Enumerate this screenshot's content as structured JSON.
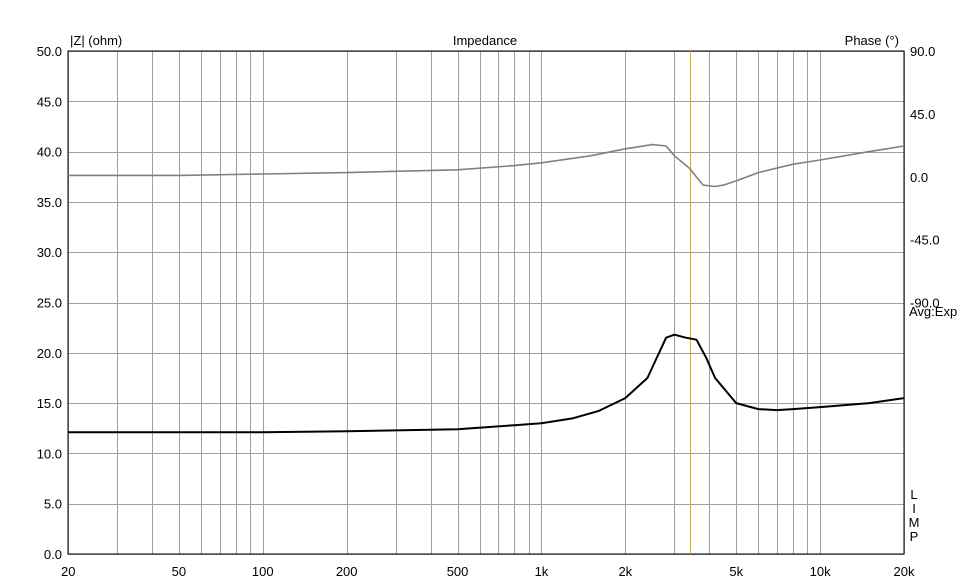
{
  "chart_data": {
    "type": "line",
    "title": "Impedance",
    "left_axis_label": "|Z| (ohm)",
    "right_axis_label": "Phase (°)",
    "side_note": "Avg:Exp",
    "watermark": "LIMP",
    "x_scale": "log",
    "xlim": [
      20,
      20000
    ],
    "ylim": [
      0,
      50
    ],
    "y2lim": [
      -270,
      90
    ],
    "grid": true,
    "x_ticks": [
      20,
      50,
      100,
      200,
      500,
      1000,
      2000,
      5000,
      10000,
      20000
    ],
    "x_tick_labels": [
      "20",
      "50",
      "100",
      "200",
      "500",
      "1k",
      "2k",
      "5k",
      "10k",
      "20k"
    ],
    "y_ticks": [
      0,
      5,
      10,
      15,
      20,
      25,
      30,
      35,
      40,
      45,
      50
    ],
    "y_tick_labels": [
      "0.0",
      "5.0",
      "10.0",
      "15.0",
      "20.0",
      "25.0",
      "30.0",
      "35.0",
      "40.0",
      "45.0",
      "50.0"
    ],
    "y2_ticks": [
      90,
      45,
      0,
      -45,
      -90
    ],
    "y2_tick_labels": [
      "90.0",
      "45.0",
      "0.0",
      "-45.0",
      "-90.0"
    ],
    "marker_frequency": 3400,
    "marker_color": "#d4b400",
    "series": [
      {
        "axis": "left",
        "color": "#000000",
        "x": [
          20,
          50,
          100,
          200,
          500,
          800,
          1000,
          1300,
          1600,
          2000,
          2400,
          2800,
          3000,
          3300,
          3600,
          3900,
          4200,
          4500,
          5000,
          6000,
          7000,
          8000,
          10000,
          15000,
          20000
        ],
        "values": [
          12.1,
          12.1,
          12.1,
          12.2,
          12.4,
          12.8,
          13.0,
          13.5,
          14.2,
          15.5,
          17.5,
          21.5,
          21.8,
          21.5,
          21.3,
          19.5,
          17.5,
          16.5,
          15.0,
          14.4,
          14.3,
          14.4,
          14.6,
          15.0,
          15.5
        ]
      },
      {
        "axis": "right",
        "color": "#808080",
        "x": [
          20,
          50,
          100,
          200,
          500,
          800,
          1000,
          1500,
          2000,
          2500,
          2800,
          3000,
          3400,
          3800,
          4200,
          4500,
          5000,
          6000,
          8000,
          10000,
          15000,
          20000
        ],
        "values": [
          1,
          1,
          2,
          3,
          5,
          8,
          10,
          15,
          20,
          23,
          22,
          15,
          6,
          -6,
          -7,
          -6,
          -3,
          3,
          9,
          12,
          18,
          22
        ]
      }
    ]
  }
}
